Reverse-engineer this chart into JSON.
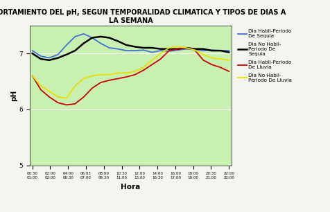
{
  "title": "COMPORTAMIENTO DEL pH, SEGUN TEMPORALIDAD CLIMATICA Y TIPOS DE DIAS A\nLA SEMANA",
  "xlabel": "Hora",
  "ylabel": "pH",
  "ylim": [
    5,
    7.5
  ],
  "yticks": [
    6,
    7
  ],
  "background_color": "#c8f0b0",
  "fig_background": "#f5f5f0",
  "x_labels": [
    "00:30\n01:00",
    "02:00\n02:00",
    "04:00\n06:30",
    "06:03\n07:00",
    "08:00\n09:30",
    "10:30\n11:00",
    "12:00\n13:00",
    "14:00\n16:30",
    "16:00\n17:00",
    "19:00\n19:00",
    "20:30\n21:00",
    "22:00\n22:00"
  ],
  "series": [
    {
      "label": "Dia Habil-Periodo\nDe Sequia",
      "color": "#4070d0",
      "linewidth": 1.3,
      "values": [
        7.05,
        6.95,
        6.92,
        6.98,
        7.15,
        7.3,
        7.35,
        7.28,
        7.18,
        7.1,
        7.08,
        7.05,
        7.05,
        7.06,
        7.02,
        7.05,
        7.04,
        7.06,
        7.08,
        7.07,
        7.05,
        7.06,
        7.05,
        7.05
      ]
    },
    {
      "label": "Dia No Habil-\nPeriodo De\nSequia",
      "color": "#000000",
      "linewidth": 1.8,
      "values": [
        7.0,
        6.9,
        6.88,
        6.92,
        6.98,
        7.05,
        7.18,
        7.28,
        7.3,
        7.28,
        7.22,
        7.15,
        7.12,
        7.1,
        7.1,
        7.08,
        7.08,
        7.08,
        7.1,
        7.08,
        7.08,
        7.05,
        7.05,
        7.02
      ]
    },
    {
      "label": "Dia Habil-Periodo\nDe Lluvia",
      "color": "#cc0000",
      "linewidth": 1.3,
      "values": [
        6.6,
        6.35,
        6.22,
        6.12,
        6.08,
        6.1,
        6.22,
        6.38,
        6.48,
        6.52,
        6.55,
        6.58,
        6.62,
        6.7,
        6.8,
        6.9,
        7.05,
        7.08,
        7.1,
        7.06,
        6.88,
        6.8,
        6.75,
        6.68
      ]
    },
    {
      "label": "Dia No Habil-\nPeriodo De Lluvia",
      "color": "#e8e000",
      "linewidth": 1.3,
      "values": [
        6.6,
        6.42,
        6.32,
        6.22,
        6.2,
        6.42,
        6.55,
        6.6,
        6.62,
        6.62,
        6.65,
        6.65,
        6.68,
        6.75,
        6.88,
        7.0,
        7.1,
        7.12,
        7.1,
        7.06,
        6.98,
        6.92,
        6.9,
        6.88
      ]
    }
  ]
}
